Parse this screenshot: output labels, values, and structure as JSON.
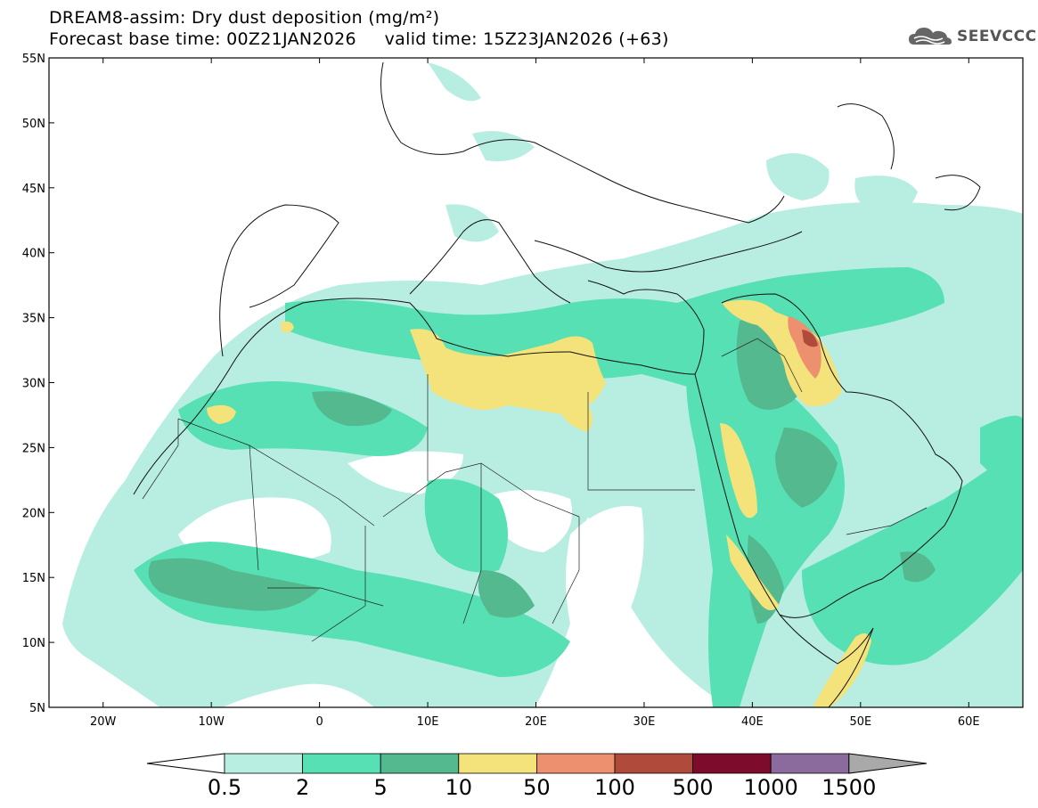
{
  "title": {
    "line1": "DREAM8-assim: Dry dust deposition (mg/m²)",
    "line2": "Forecast base time: 00Z21JAN2026     valid time: 15Z23JAN2026 (+63)"
  },
  "logo": {
    "text": "SEEVCCC",
    "icon": "cloud-icon"
  },
  "map": {
    "lat_labels": [
      "55N",
      "50N",
      "45N",
      "40N",
      "35N",
      "30N",
      "25N",
      "20N",
      "15N",
      "10N",
      "5N"
    ],
    "lon_labels": [
      "20W",
      "10W",
      "0",
      "10E",
      "20E",
      "30E",
      "40E",
      "50E",
      "60E"
    ],
    "lon_range": [
      -25,
      65
    ],
    "lat_range": [
      5,
      55
    ]
  },
  "colorbar": {
    "colors": [
      "#b8eee2",
      "#56e0b4",
      "#55b98f",
      "#f4e27a",
      "#ec9070",
      "#b04b3c",
      "#7d0b2b",
      "#8b6b9e",
      "#a9a9a9"
    ],
    "labels": [
      "0.5",
      "2",
      "5",
      "10",
      "50",
      "100",
      "500",
      "1000",
      "1500"
    ]
  }
}
